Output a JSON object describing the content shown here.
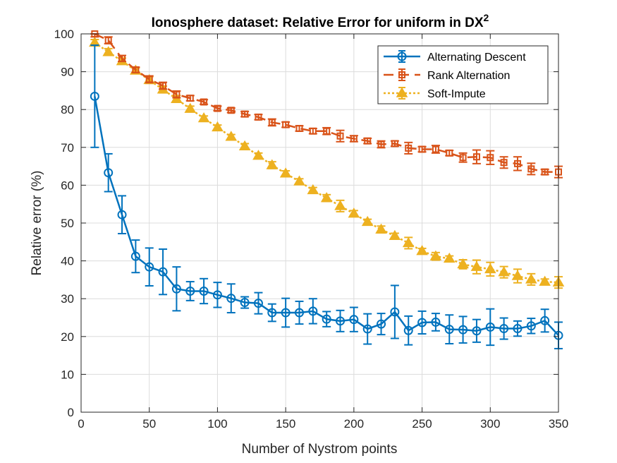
{
  "chart_data": {
    "type": "line",
    "title": "Ionosphere dataset: Relative Error for uniform in DX",
    "title_superscript": "2",
    "xlabel": "Number of Nystrom points",
    "ylabel": "Relative error (%)",
    "xlim": [
      0,
      350
    ],
    "ylim": [
      0,
      100
    ],
    "xticks": [
      0,
      50,
      100,
      150,
      200,
      250,
      300,
      350
    ],
    "yticks": [
      0,
      10,
      20,
      30,
      40,
      50,
      60,
      70,
      80,
      90,
      100
    ],
    "grid": true,
    "legend_position": "top-right",
    "x": [
      10,
      20,
      30,
      40,
      50,
      60,
      70,
      80,
      90,
      100,
      110,
      120,
      130,
      140,
      150,
      160,
      170,
      180,
      190,
      200,
      210,
      220,
      230,
      240,
      250,
      260,
      270,
      280,
      290,
      300,
      310,
      320,
      330,
      340,
      350
    ],
    "series": [
      {
        "name": "Alternating Descent",
        "color": "#0072BD",
        "marker": "circle",
        "linestyle": "solid",
        "values": [
          83.5,
          63.3,
          52.2,
          41.2,
          38.4,
          37.1,
          32.6,
          32.0,
          32.0,
          31.0,
          30.1,
          29.0,
          28.8,
          26.3,
          26.3,
          26.3,
          26.7,
          24.6,
          24.1,
          24.5,
          22.0,
          23.3,
          26.5,
          21.6,
          23.7,
          23.8,
          21.9,
          21.8,
          21.5,
          22.5,
          22.1,
          22.1,
          22.8,
          24.2,
          20.3
        ],
        "errors": [
          13.5,
          5.0,
          5.0,
          4.3,
          5.0,
          6.0,
          5.8,
          2.5,
          3.3,
          3.3,
          3.8,
          1.5,
          2.8,
          2.3,
          3.8,
          3.0,
          3.3,
          2.0,
          2.8,
          3.2,
          4.0,
          2.8,
          7.0,
          3.8,
          3.0,
          2.3,
          3.8,
          3.5,
          3.0,
          4.8,
          2.8,
          2.0,
          2.0,
          3.0,
          3.5
        ]
      },
      {
        "name": "Rank Alternation",
        "color": "#D95319",
        "marker": "square",
        "linestyle": "dashed",
        "values": [
          100,
          98.3,
          93.5,
          90.5,
          88.0,
          86.3,
          84.0,
          83.0,
          82.0,
          80.3,
          79.8,
          78.8,
          78.0,
          76.6,
          76.0,
          75.0,
          74.3,
          74.3,
          73.0,
          72.3,
          71.7,
          70.8,
          71.0,
          69.8,
          69.5,
          69.5,
          68.5,
          67.3,
          67.5,
          67.3,
          66.0,
          65.7,
          64.3,
          63.5,
          63.5
        ]
      },
      {
        "name": "Soft-Impute",
        "color": "#EDB120",
        "marker": "triangle",
        "linestyle": "dotted",
        "values": [
          97.7,
          95.2,
          92.8,
          90.3,
          87.8,
          85.3,
          82.8,
          80.2,
          77.7,
          75.3,
          72.8,
          70.3,
          67.8,
          65.3,
          63.1,
          61.0,
          58.7,
          56.6,
          54.5,
          52.5,
          50.3,
          48.3,
          46.6,
          44.7,
          42.6,
          41.2,
          40.6,
          39.1,
          38.4,
          37.8,
          37.0,
          36.0,
          35.1,
          34.5,
          34.3
        ]
      }
    ]
  }
}
